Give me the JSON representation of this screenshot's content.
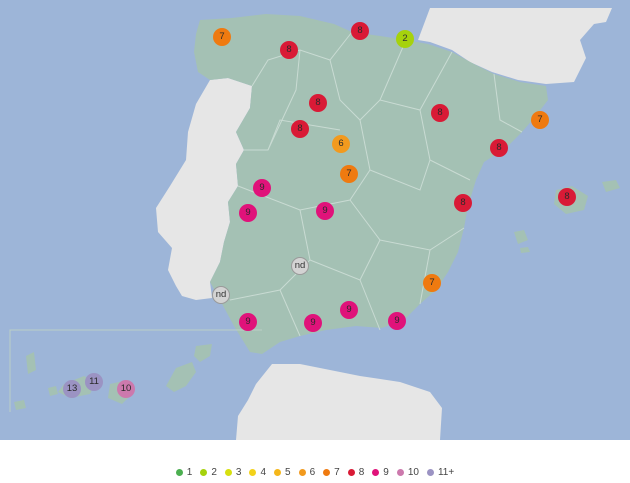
{
  "map": {
    "colors": {
      "sea": "#9db5d8",
      "spain_land": "#a4c1b4",
      "other_land": "#e6e6e6",
      "borders": "#c9dbd3"
    },
    "markers": [
      {
        "id": "galicia",
        "label": "7",
        "level": "7"
      },
      {
        "id": "leon",
        "label": "8",
        "level": "8"
      },
      {
        "id": "cantabria",
        "label": "8",
        "level": "8"
      },
      {
        "id": "basque",
        "label": "2",
        "level": "2"
      },
      {
        "id": "castilla-north",
        "label": "8",
        "level": "8"
      },
      {
        "id": "salamanca",
        "label": "8",
        "level": "8"
      },
      {
        "id": "aragon",
        "label": "8",
        "level": "8"
      },
      {
        "id": "catalonia-north",
        "label": "7",
        "level": "7"
      },
      {
        "id": "barcelona",
        "label": "8",
        "level": "8"
      },
      {
        "id": "segovia",
        "label": "6",
        "level": "6"
      },
      {
        "id": "madrid",
        "label": "7",
        "level": "7"
      },
      {
        "id": "caceres",
        "label": "9",
        "level": "9"
      },
      {
        "id": "badajoz",
        "label": "9",
        "level": "9"
      },
      {
        "id": "ciudad-real",
        "label": "9",
        "level": "9"
      },
      {
        "id": "valencia",
        "label": "8",
        "level": "8"
      },
      {
        "id": "mallorca",
        "label": "8",
        "level": "8"
      },
      {
        "id": "cordoba",
        "label": "nd",
        "level": "nd"
      },
      {
        "id": "huelva",
        "label": "nd",
        "level": "nd"
      },
      {
        "id": "alicante",
        "label": "7",
        "level": "7"
      },
      {
        "id": "cadiz",
        "label": "9",
        "level": "9"
      },
      {
        "id": "malaga",
        "label": "9",
        "level": "9"
      },
      {
        "id": "granada",
        "label": "9",
        "level": "9"
      },
      {
        "id": "almeria",
        "label": "9",
        "level": "9"
      },
      {
        "id": "tenerife",
        "label": "13",
        "level": "13"
      },
      {
        "id": "gran-canaria",
        "label": "11",
        "level": "11"
      },
      {
        "id": "fuerteventura",
        "label": "10",
        "level": "10"
      }
    ]
  },
  "legend": [
    {
      "label": "1",
      "color": "#4caf50"
    },
    {
      "label": "2",
      "color": "#a6d20c"
    },
    {
      "label": "3",
      "color": "#d7e00f"
    },
    {
      "label": "4",
      "color": "#f3d21a"
    },
    {
      "label": "5",
      "color": "#f5b71a"
    },
    {
      "label": "6",
      "color": "#f29a1e"
    },
    {
      "label": "7",
      "color": "#ef7a10"
    },
    {
      "label": "8",
      "color": "#d91a36"
    },
    {
      "label": "9",
      "color": "#e0127a"
    },
    {
      "label": "10",
      "color": "#cc79ad"
    },
    {
      "label": "11+",
      "color": "#9b93c3"
    }
  ],
  "level_colors": {
    "2": "#a6d20c",
    "6": "#f29a1e",
    "7": "#ef7a10",
    "8": "#d91a36",
    "9": "#e0127a",
    "10": "#cc79ad",
    "11": "#9b93c3",
    "13": "#9b93c3",
    "nd": "#d3d3d3"
  }
}
